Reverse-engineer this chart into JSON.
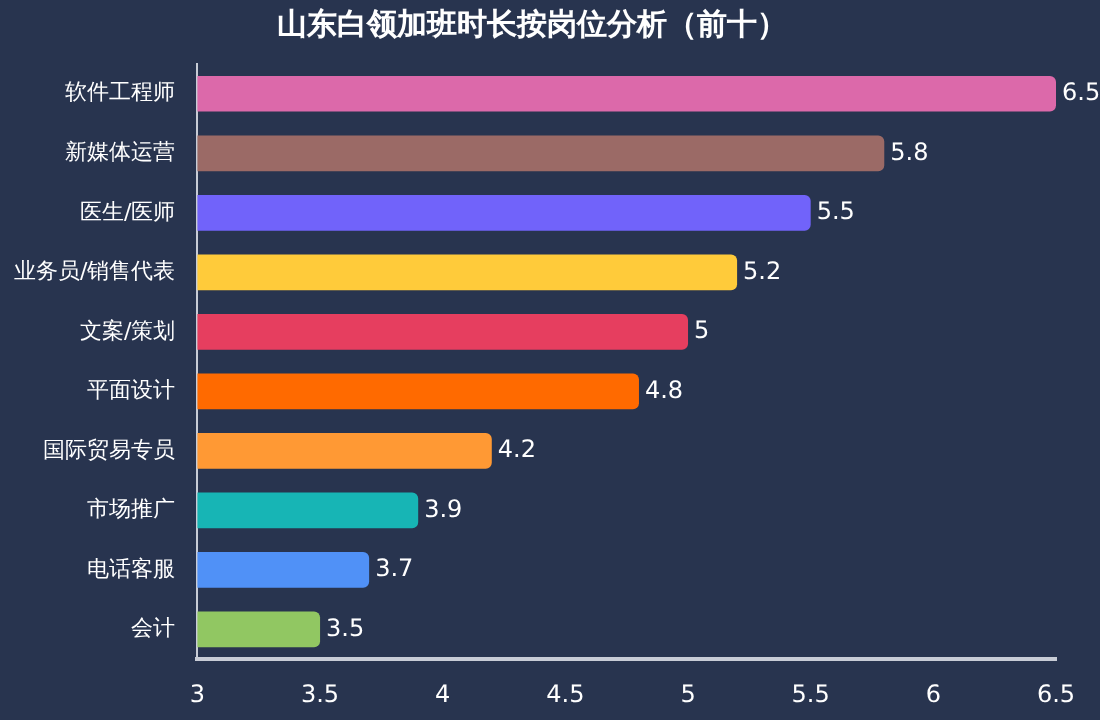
{
  "chart_data": {
    "type": "bar",
    "orientation": "horizontal",
    "title": "山东白领加班时长按岗位分析（前十）",
    "categories": [
      "软件工程师",
      "新媒体运营",
      "医生/医师",
      "业务员/销售代表",
      "文案/策划",
      "平面设计",
      "国际贸易专员",
      "市场推广",
      "电话客服",
      "会计"
    ],
    "values": [
      6.5,
      5.8,
      5.5,
      5.2,
      5,
      4.8,
      4.2,
      3.9,
      3.7,
      3.5
    ],
    "colors": [
      "#dc69aa",
      "#9b6a66",
      "#7163fa",
      "#ffcb3a",
      "#e63e5f",
      "#ff6a00",
      "#ff9934",
      "#17b5b5",
      "#5091f7",
      "#91c762"
    ],
    "xlim": [
      3,
      6.5
    ],
    "xticks": [
      3,
      3.5,
      4,
      4.5,
      5,
      5.5,
      6,
      6.5
    ],
    "grid": false,
    "legend": false,
    "data_labels": true
  }
}
